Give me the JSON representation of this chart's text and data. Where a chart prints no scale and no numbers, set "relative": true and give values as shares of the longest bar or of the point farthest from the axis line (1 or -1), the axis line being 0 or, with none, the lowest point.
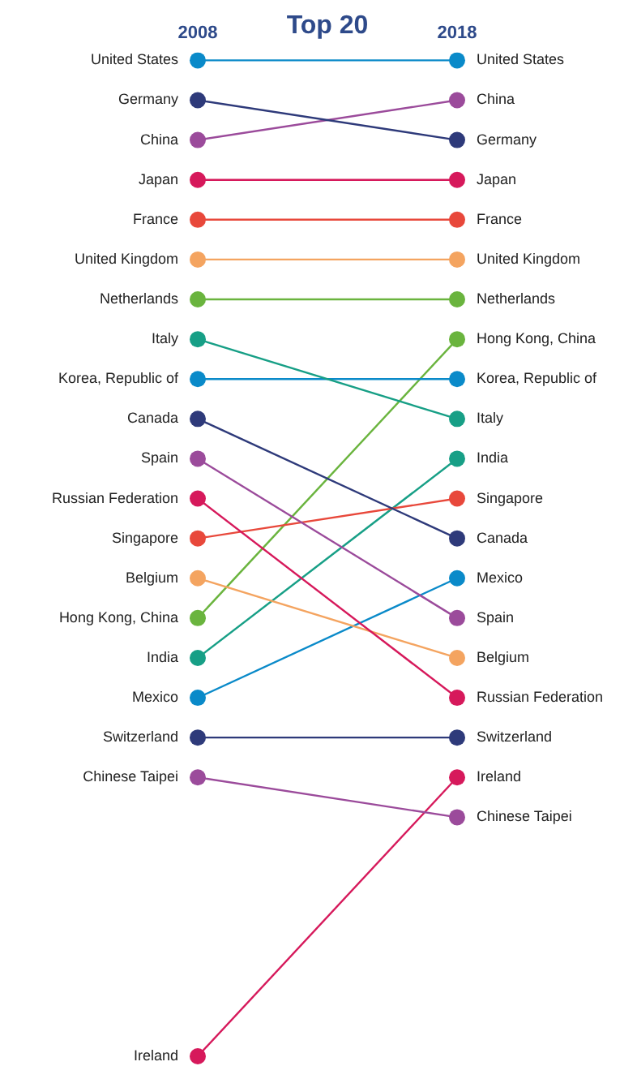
{
  "chart_data": {
    "type": "line",
    "title": "Top 20",
    "categories": [
      "2008",
      "2018"
    ],
    "relative": true,
    "legend": false,
    "grid": false,
    "marker": "circle",
    "line_style": "solid",
    "series": [
      {
        "name": "United States",
        "color": "#0a8ac9",
        "values": [
          1,
          1
        ]
      },
      {
        "name": "Germany",
        "color": "#2e3a7a",
        "values": [
          0.96,
          0.92
        ]
      },
      {
        "name": "China",
        "color": "#9b4b9b",
        "values": [
          0.92,
          0.96
        ]
      },
      {
        "name": "Japan",
        "color": "#d6195b",
        "values": [
          0.88,
          0.88
        ]
      },
      {
        "name": "France",
        "color": "#e8483b",
        "values": [
          0.84,
          0.84
        ]
      },
      {
        "name": "United Kingdom",
        "color": "#f4a460",
        "values": [
          0.8,
          0.8
        ]
      },
      {
        "name": "Netherlands",
        "color": "#6ab43e",
        "values": [
          0.76,
          0.76
        ]
      },
      {
        "name": "Italy",
        "color": "#179f86",
        "values": [
          0.72,
          0.64
        ]
      },
      {
        "name": "Korea, Republic of",
        "color": "#0a8ac9",
        "values": [
          0.68,
          0.68
        ]
      },
      {
        "name": "Canada",
        "color": "#2e3a7a",
        "values": [
          0.64,
          0.52
        ]
      },
      {
        "name": "Spain",
        "color": "#9b4b9b",
        "values": [
          0.6,
          0.44
        ]
      },
      {
        "name": "Russian Federation",
        "color": "#d6195b",
        "values": [
          0.56,
          0.36
        ]
      },
      {
        "name": "Singapore",
        "color": "#e8483b",
        "values": [
          0.52,
          0.56
        ]
      },
      {
        "name": "Belgium",
        "color": "#f4a460",
        "values": [
          0.48,
          0.4
        ]
      },
      {
        "name": "Hong Kong, China",
        "color": "#6ab43e",
        "values": [
          0.44,
          0.72
        ]
      },
      {
        "name": "India",
        "color": "#179f86",
        "values": [
          0.4,
          0.6
        ]
      },
      {
        "name": "Mexico",
        "color": "#0a8ac9",
        "values": [
          0.36,
          0.48
        ]
      },
      {
        "name": "Switzerland",
        "color": "#2e3a7a",
        "values": [
          0.32,
          0.32
        ]
      },
      {
        "name": "Chinese Taipei",
        "color": "#9b4b9b",
        "values": [
          0.28,
          0.24
        ]
      },
      {
        "name": "Ireland",
        "color": "#d6195b",
        "values": [
          0,
          0.28
        ]
      }
    ]
  }
}
